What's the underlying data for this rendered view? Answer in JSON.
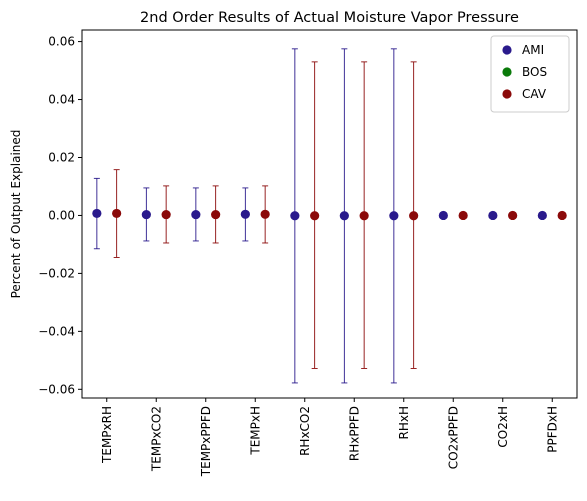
{
  "chart_data": {
    "type": "scatter",
    "title": "2nd Order Results of Actual Moisture Vapor Pressure",
    "xlabel": "",
    "ylabel": "Percent of Output Explained",
    "categories": [
      "TEMPxRH",
      "TEMPxCO2",
      "TEMPxPPFD",
      "TEMPxH",
      "RHxCO2",
      "RHxPPFD",
      "RHxH",
      "CO2xPPFD",
      "CO2xH",
      "PPFDxH"
    ],
    "ylim": [
      -0.063,
      0.064
    ],
    "yticks": [
      -0.06,
      -0.04,
      -0.02,
      0.0,
      0.02,
      0.04,
      0.06
    ],
    "ytick_labels": [
      "−0.06",
      "−0.04",
      "−0.02",
      "0.00",
      "0.02",
      "0.04",
      "0.06"
    ],
    "grid": false,
    "legend_position": "top-right",
    "series": [
      {
        "name": "AMI",
        "color": "#2a1a8c",
        "offset": -0.2,
        "values": [
          0.0007,
          0.0003,
          0.0003,
          0.0004,
          -0.0001,
          -0.0001,
          -0.0001,
          0.0,
          0.0,
          0.0
        ],
        "err_low": [
          -0.0115,
          -0.0088,
          -0.0088,
          -0.0088,
          -0.0578,
          -0.0578,
          -0.0578,
          0.0,
          0.0,
          0.0
        ],
        "err_high": [
          0.0128,
          0.0095,
          0.0095,
          0.0095,
          0.0575,
          0.0575,
          0.0575,
          0.0,
          0.0,
          0.0
        ]
      },
      {
        "name": "BOS",
        "color": "#0a7a0a",
        "offset": 0.0,
        "values": [],
        "err_low": [],
        "err_high": []
      },
      {
        "name": "CAV",
        "color": "#8b0a0a",
        "offset": 0.2,
        "values": [
          0.0007,
          0.0003,
          0.0003,
          0.0004,
          -0.0001,
          -0.0001,
          -0.0001,
          0.0,
          0.0,
          0.0
        ],
        "err_low": [
          -0.0145,
          -0.0095,
          -0.0095,
          -0.0095,
          -0.0528,
          -0.0528,
          -0.0528,
          0.0,
          0.0,
          0.0
        ],
        "err_high": [
          0.0158,
          0.0102,
          0.0102,
          0.0102,
          0.053,
          0.053,
          0.053,
          0.0,
          0.0,
          0.0
        ]
      }
    ]
  }
}
